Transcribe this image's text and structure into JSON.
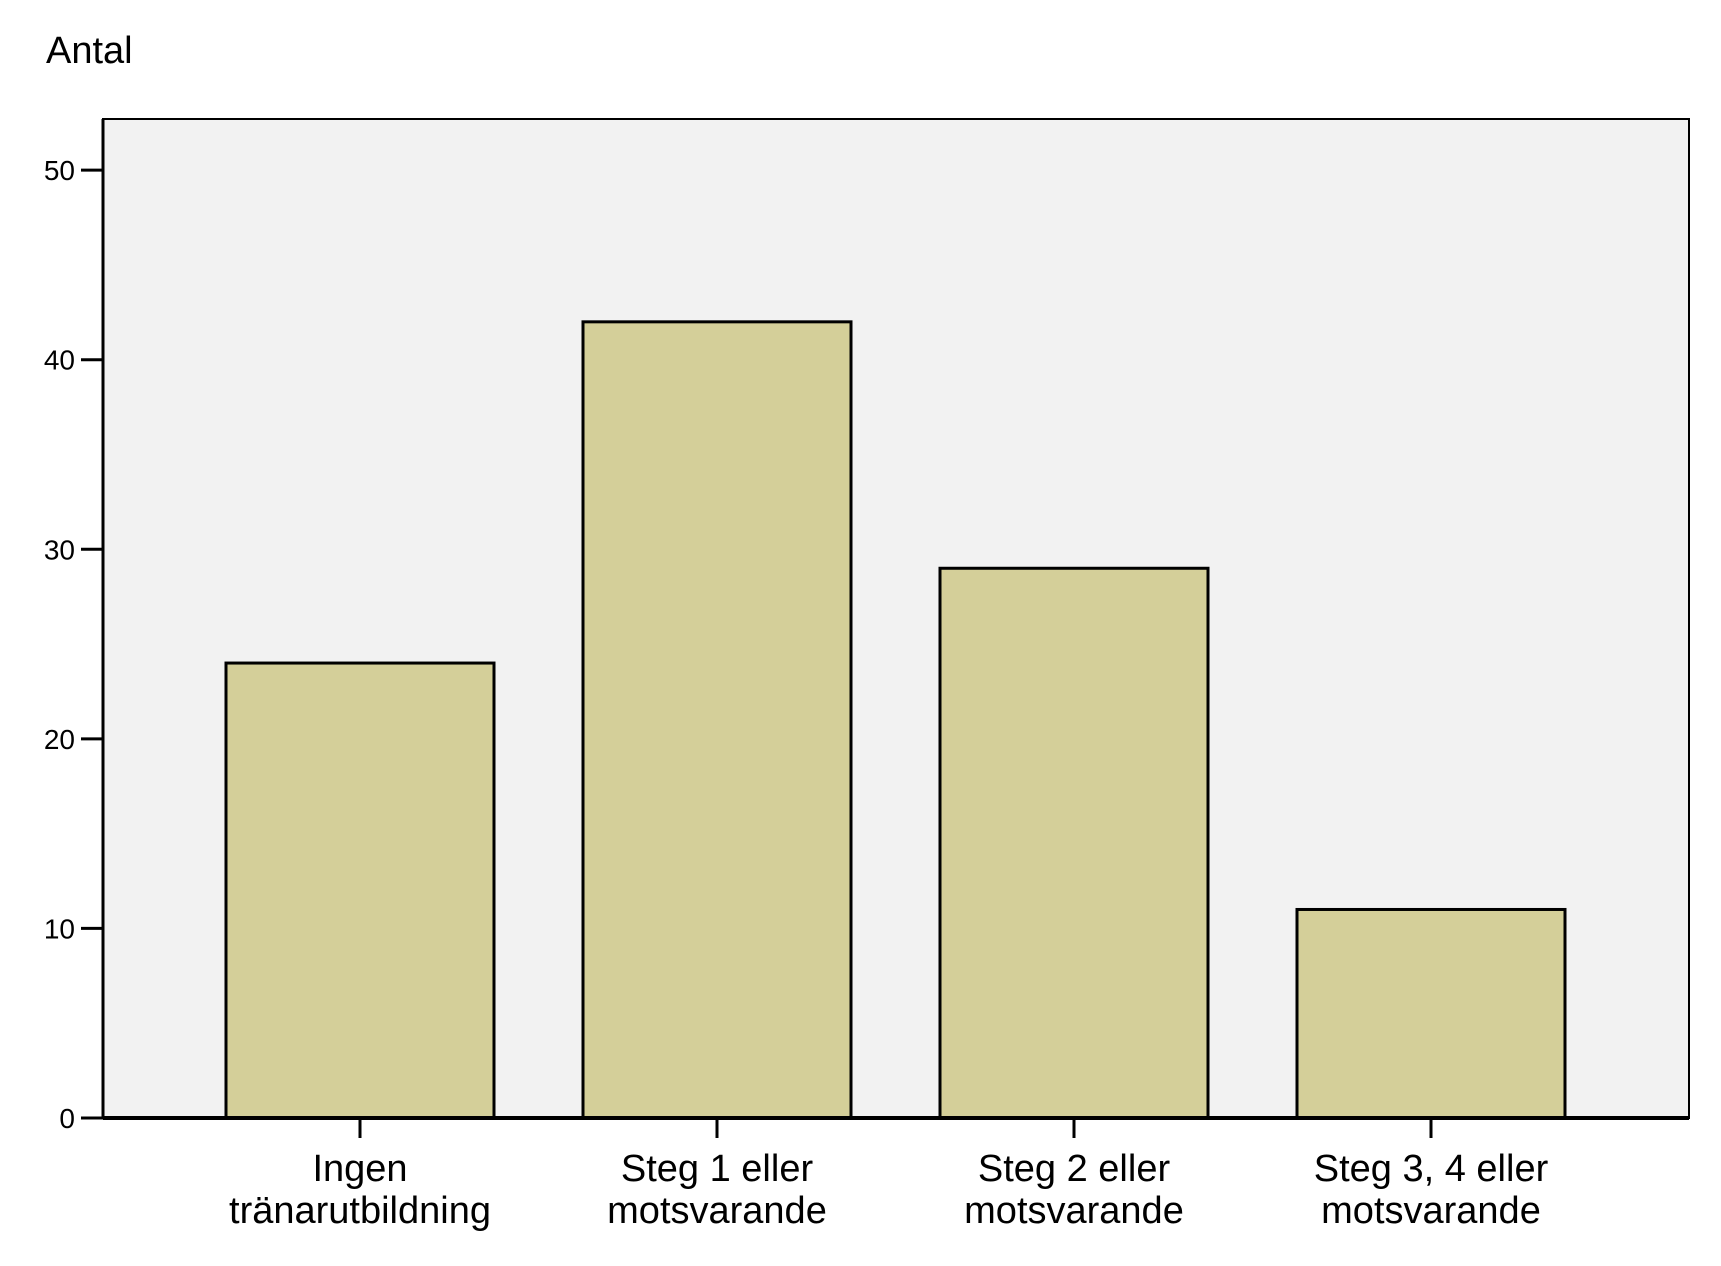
{
  "chart_data": {
    "type": "bar",
    "ylabel": "Antal",
    "xlabel": "",
    "title": "",
    "categories": [
      [
        "Ingen",
        "tränarutbildning"
      ],
      [
        "Steg 1 eller",
        "motsvarande"
      ],
      [
        "Steg 2 eller",
        "motsvarande"
      ],
      [
        "Steg 3, 4 eller",
        "motsvarande"
      ]
    ],
    "values": [
      24,
      42,
      29,
      11
    ],
    "ylim": [
      0,
      52.7
    ],
    "yticks": [
      0,
      10,
      20,
      30,
      40,
      50
    ],
    "grid": false,
    "legend": "none",
    "colors": {
      "bar_fill": "#d4cf99",
      "bar_stroke": "#000000",
      "plot_background": "#f2f2f2",
      "axis": "#000000"
    }
  }
}
